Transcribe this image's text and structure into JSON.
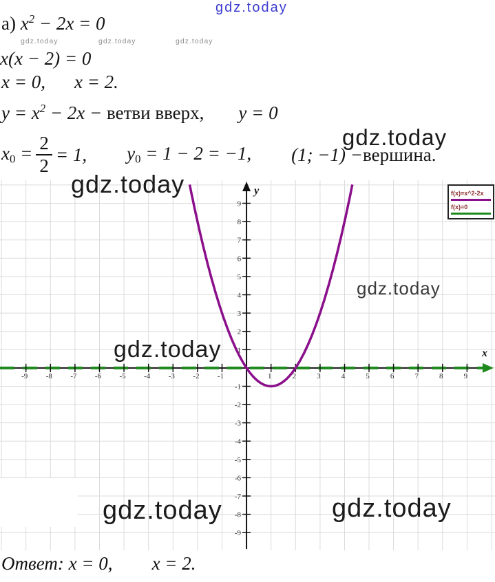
{
  "brand": {
    "name": "gdz.today"
  },
  "solution": {
    "part_label": "а) ",
    "l1_base": "x",
    "l1_sup": "2",
    "l1_rest": " − 2x = 0",
    "l2": "x(x − 2) = 0",
    "l3_a": "x = 0,",
    "l3_b": "x = 2.",
    "l4_base": "y = x",
    "l4_sup": "2",
    "l4_rest": " − 2x − ",
    "l4_text": "ветви вверх,",
    "l4_b": "y = 0",
    "l5_x": "x",
    "l5_xsub": "0",
    "l5_eq1": " = ",
    "l5_num": "2",
    "l5_den": "2",
    "l5_eq2": " = 1,",
    "l5_y": "y",
    "l5_ysub": "0",
    "l5_yrest": " = 1 − 2 = −1,",
    "l5_vertex": "(1; −1) − ",
    "l5_word": "вершина.",
    "answer_label": "Ответ: ",
    "answer_a": "x = 0,",
    "answer_b": "x = 2."
  },
  "chart_data": {
    "type": "line",
    "title": "",
    "xlabel": "x",
    "ylabel": "y",
    "grid": true,
    "functions": [
      {
        "name": "f(x)=x^2-2x",
        "coeffs": [
          0,
          -2,
          1
        ],
        "color": "#8B0F8B",
        "style": "solid",
        "width": 3.5
      },
      {
        "name": "f(x)=0",
        "coeffs": [
          0
        ],
        "color": "#1E8A1E",
        "style": "dashed",
        "width": 4
      }
    ],
    "view": {
      "x_range": [
        -10.06,
        10.14
      ],
      "y_range": [
        -9.97,
        10.26
      ]
    },
    "x_ticks": [
      -9,
      -8,
      -7,
      -6,
      -5,
      -4,
      -3,
      -2,
      -1,
      1,
      2,
      3,
      4,
      5,
      6,
      7,
      8,
      9
    ],
    "y_ticks": [
      -9,
      -8,
      -7,
      -6,
      -5,
      -4,
      -3,
      -2,
      -1,
      1,
      2,
      3,
      4,
      5,
      6,
      7,
      8,
      9
    ],
    "roots": [
      0,
      2
    ],
    "vertex": [
      1,
      -1
    ],
    "legend": {
      "position": "top-right",
      "entries": [
        "f(x)=x^2-2x",
        "f(x)=0"
      ],
      "text_color": "#8B2A2A"
    },
    "axis_color": "#111111",
    "grid_color": "#DBDBDB",
    "tick_label_color": "#2a2a2a"
  }
}
